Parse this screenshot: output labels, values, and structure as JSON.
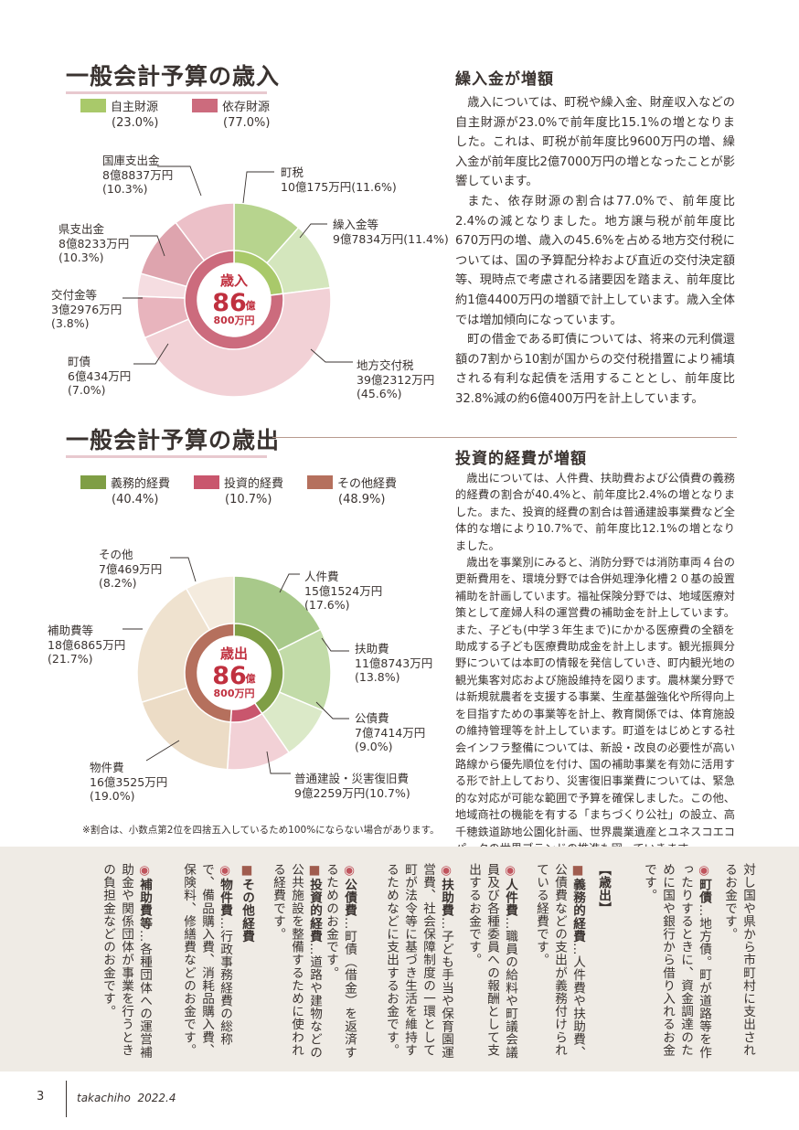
{
  "revenue": {
    "title": "一般会計予算の歳入",
    "legend": [
      {
        "label": "自主財源",
        "pct": "(23.0%)",
        "color": "#a9c96a"
      },
      {
        "label": "依存財源",
        "pct": "(77.0%)",
        "color": "#cc6b7d"
      }
    ],
    "center": {
      "label": "歳入",
      "value": "86",
      "unit": "億",
      "sub": "800万円"
    },
    "labels": {
      "choze": {
        "name": "町税",
        "amount": "10億175万円(11.6%)"
      },
      "kurikomi": {
        "name": "繰入金等",
        "amount": "9億7834万円(11.4%)"
      },
      "chiho": {
        "name": "地方交付税",
        "amount": "39億2312万円",
        "pct": "(45.6%)"
      },
      "chosai": {
        "name": "町債",
        "amount": "6億434万円",
        "pct": "(7.0%)"
      },
      "kofukin": {
        "name": "交付金等",
        "amount": "3億2976万円",
        "pct": "(3.8%)"
      },
      "ken": {
        "name": "県支出金",
        "amount": "8億8233万円",
        "pct": "(10.3%)"
      },
      "kokko": {
        "name": "国庫支出金",
        "amount": "8億8837万円",
        "pct": "(10.3%)"
      }
    },
    "chart_data": {
      "type": "pie",
      "inner": [
        {
          "name": "自主財源",
          "value": 23.0,
          "color": "#a9c96a"
        },
        {
          "name": "依存財源",
          "value": 77.0,
          "color": "#cc6b7d"
        }
      ],
      "outer": [
        {
          "name": "町税",
          "value": 11.6,
          "color": "#b7d48e"
        },
        {
          "name": "繰入金等",
          "value": 11.4,
          "color": "#d4e6bd"
        },
        {
          "name": "地方交付税",
          "value": 45.6,
          "color": "#f2d1d6"
        },
        {
          "name": "町債",
          "value": 7.0,
          "color": "#e8b4bd"
        },
        {
          "name": "交付金等",
          "value": 3.8,
          "color": "#f5dde1"
        },
        {
          "name": "県支出金",
          "value": 10.3,
          "color": "#dea4ae"
        },
        {
          "name": "国庫支出金",
          "value": 10.3,
          "color": "#ecc0c8"
        }
      ]
    }
  },
  "revenue_text": {
    "heading": "繰入金が増額",
    "paragraphs": [
      "歳入については、町税や繰入金、財産収入などの自主財源が23.0%で前年度比15.1%の増となりました。これは、町税が前年度比9600万円の増、繰入金が前年度比2億7000万円の増となったことが影響しています。",
      "また、依存財源の割合は77.0%で、前年度比2.4%の減となりました。地方譲与税が前年度比670万円の増、歳入の45.6%を占める地方交付税については、国の予算配分枠および直近の交付決定額等、現時点で考慮される諸要因を踏まえ、前年度比約1億4400万円の増額で計上しています。歳入全体では増加傾向になっています。",
      "町の借金である町債については、将来の元利償還額の7割から10割が国からの交付税措置により補填される有利な起債を活用することとし、前年度比32.8%減の約6億400万円を計上しています。"
    ]
  },
  "expenditure": {
    "title": "一般会計予算の歳出",
    "legend": [
      {
        "label": "義務的経費",
        "pct": "(40.4%)",
        "color": "#7f9e45"
      },
      {
        "label": "投資的経費",
        "pct": "(10.7%)",
        "color": "#c9566d"
      },
      {
        "label": "その他経費",
        "pct": "(48.9%)",
        "color": "#b5705d"
      }
    ],
    "center": {
      "label": "歳出",
      "value": "86",
      "unit": "億",
      "sub": "800万円"
    },
    "labels": {
      "jinken": {
        "name": "人件費",
        "amount": "15億1524万円",
        "pct": "(17.6%)"
      },
      "fujo": {
        "name": "扶助費",
        "amount": "11億8743万円",
        "pct": "(13.8%)"
      },
      "kosai": {
        "name": "公債費",
        "amount": "7億7414万円",
        "pct": "(9.0%)"
      },
      "futsu": {
        "name": "普通建設・災害復旧費",
        "amount": "9億2259万円(10.7%)"
      },
      "bukken": {
        "name": "物件費",
        "amount": "16億3525万円",
        "pct": "(19.0%)"
      },
      "hojo": {
        "name": "補助費等",
        "amount": "18億6865万円",
        "pct": "(21.7%)"
      },
      "sonota": {
        "name": "その他",
        "amount": "7億469万円",
        "pct": "(8.2%)"
      }
    },
    "chart_data": {
      "type": "pie",
      "inner": [
        {
          "name": "義務的経費",
          "value": 40.4,
          "color": "#7f9e45"
        },
        {
          "name": "投資的経費",
          "value": 10.7,
          "color": "#c9566d"
        },
        {
          "name": "その他経費",
          "value": 48.9,
          "color": "#b5705d"
        }
      ],
      "outer": [
        {
          "name": "人件費",
          "value": 17.6,
          "color": "#a8c98a"
        },
        {
          "name": "扶助費",
          "value": 13.8,
          "color": "#c2dba8"
        },
        {
          "name": "公債費",
          "value": 9.0,
          "color": "#dbe9c8"
        },
        {
          "name": "普通建設・災害復旧費",
          "value": 10.7,
          "color": "#f2d1d6"
        },
        {
          "name": "物件費",
          "value": 19.0,
          "color": "#ecdcc6"
        },
        {
          "name": "補助費等",
          "value": 21.7,
          "color": "#efe2cf"
        },
        {
          "name": "その他",
          "value": 8.2,
          "color": "#f4ebde"
        }
      ]
    }
  },
  "expenditure_text": {
    "heading": "投資的経費が増額",
    "paragraphs": [
      "歳出については、人件費、扶助費および公債費の義務的経費の割合が40.4%と、前年度比2.4%の増となりました。また、投資的経費の割合は普通建設事業費など全体的な増により10.7%で、前年度比12.1%の増となりました。",
      "歳出を事業別にみると、消防分野では消防車両４台の更新費用を、環境分野では合併処理浄化槽２０基の設置補助を計画しています。福祉保険分野では、地域医療対策として産婦人科の運営費の補助金を計上しています。また、子ども(中学３年生まで)にかかる医療費の全額を助成する子ども医療費助成金を計上します。観光振興分野については本町の情報を発信していき、町内観光地の観光集客対応および施設維持を図ります。農林業分野では新規就農者を支援する事業、生産基盤強化や所得向上を目指すための事業等を計上、教育関係では、体育施設の維持管理等を計上しています。町道をはじめとする社会インフラ整備については、新設・改良の必要性が高い路線から優先順位を付け、国の補助事業を有効に活用する形で計上しており、災害復旧事業費については、緊急的な対応が可能な範囲で予算を確保しました。この他、地域商社の機能を有する「まちづくり公社」の設立、高千穂鉄道跡地公園化計画、世界農業遺産とユネスコエコパークの世界ブランドの推進も図っていきます。"
    ]
  },
  "note": "※割合は、小数点第2位を四捨五入しているため100%にならない場合があります。",
  "glossary": {
    "col1": "対し国や県から市町村に支出されるお金です。",
    "col2_term": "町債",
    "col2_text": "…地方債。町が道路等を作ったりするときに、資金調達のために国や銀行から借り入れるお金です。",
    "col3_heading": "【歳出】",
    "col4_term": "義務的経費",
    "col4_text": "…人件費や扶助費、公債費などの支出が義務付けられている経費です。",
    "col5_term": "人件費",
    "col5_text": "…職員の給料や町議会議員及び各種委員への報酬として支出するお金です。",
    "col6_term": "扶助費",
    "col6_text": "…子ども手当や保育園運営費、社会保障制度の一環として町が法令等に基づき生活を維持するためなどに支出するお金です。",
    "col7_term": "公債費",
    "col7_text": "…町債（借金）を返済するためのお金です。",
    "col8_term": "投資的経費",
    "col8_text": "…道路や建物などの公共施設を整備するために使われる経費です。",
    "col9_term": "その他経費",
    "col10_term": "物件費",
    "col10_text": "…行政事務経費の総称で、備品購入費、消耗品購入費、保険料、修繕費などのお金です。",
    "col11_term": "補助費等",
    "col11_text": "…各種団体への運営補助金や関係団体が事業を行うときの負担金などのお金です。"
  },
  "footer": {
    "page": "3",
    "brand": "takachiho",
    "issue": "2022.4"
  }
}
